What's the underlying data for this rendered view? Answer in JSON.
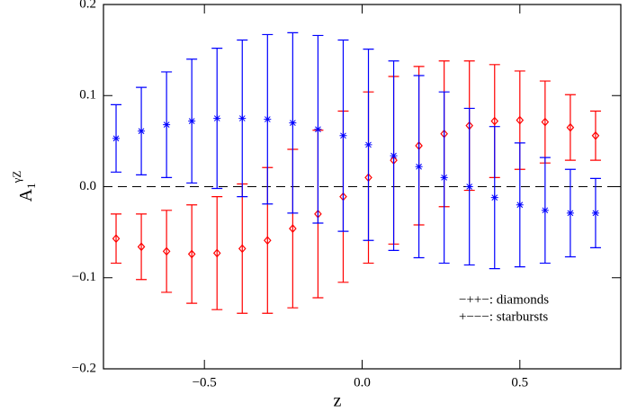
{
  "chart_data": {
    "type": "errorbar",
    "x_label": "z",
    "y_label": {
      "base": "A",
      "sub": "1",
      "sup": "γZ"
    },
    "x": [
      -0.78,
      -0.7,
      -0.62,
      -0.54,
      -0.46,
      -0.38,
      -0.3,
      -0.22,
      -0.14,
      -0.06,
      0.02,
      0.1,
      0.18,
      0.26,
      0.34,
      0.42,
      0.5,
      0.58,
      0.66,
      0.74
    ],
    "series": [
      {
        "name": "−++−: diamonds",
        "color": "#ff0000",
        "marker": "diamond",
        "values": [
          -0.057,
          -0.066,
          -0.071,
          -0.074,
          -0.073,
          -0.068,
          -0.059,
          -0.046,
          -0.03,
          -0.011,
          0.01,
          0.029,
          0.045,
          0.058,
          0.067,
          0.072,
          0.073,
          0.071,
          0.065,
          0.056
        ],
        "errors": [
          0.027,
          0.036,
          0.045,
          0.054,
          0.062,
          0.071,
          0.08,
          0.087,
          0.092,
          0.094,
          0.094,
          0.092,
          0.087,
          0.08,
          0.071,
          0.062,
          0.054,
          0.045,
          0.036,
          0.027
        ]
      },
      {
        "name": "+−−−: starbursts",
        "color": "#0000ff",
        "marker": "asterisk",
        "values": [
          0.053,
          0.061,
          0.068,
          0.072,
          0.075,
          0.075,
          0.074,
          0.07,
          0.063,
          0.056,
          0.046,
          0.034,
          0.022,
          0.01,
          0.0,
          -0.012,
          -0.02,
          -0.026,
          -0.029,
          -0.029
        ],
        "errors": [
          0.037,
          0.048,
          0.058,
          0.068,
          0.077,
          0.086,
          0.093,
          0.099,
          0.103,
          0.105,
          0.105,
          0.104,
          0.1,
          0.094,
          0.086,
          0.078,
          0.068,
          0.058,
          0.048,
          0.038
        ]
      }
    ],
    "reference_line": 0,
    "xlim": [
      -0.82,
      0.82
    ],
    "ylim": [
      -0.2,
      0.2
    ],
    "xticks": [
      {
        "value": -0.5,
        "label": "−0.5"
      },
      {
        "value": 0,
        "label": "0.0"
      },
      {
        "value": 0.5,
        "label": "0.5"
      }
    ],
    "yticks": [
      {
        "value": -0.2,
        "label": "−0.2"
      },
      {
        "value": -0.1,
        "label": "−0.1"
      },
      {
        "value": 0,
        "label": "0.0"
      },
      0.1,
      0.2
    ],
    "legend": "lower right"
  }
}
